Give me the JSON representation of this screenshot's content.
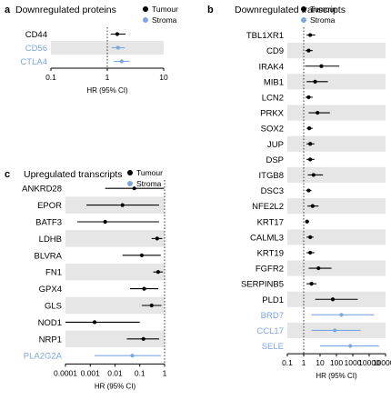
{
  "colors": {
    "tumour": "#000000",
    "stroma": "#7ea6e0",
    "band": "#e6e6e6"
  },
  "chart_data": [
    {
      "panel": "a",
      "type": "scatter",
      "title": "Downregulated proteins",
      "xlabel": "HR (95% CI)",
      "xscale": "log",
      "xlim": [
        0.1,
        10
      ],
      "xticks": [
        0.1,
        1,
        10
      ],
      "xticklabels": [
        "0.1",
        "1",
        "10"
      ],
      "reference_line": 1,
      "legend": [
        "Tumour",
        "Stroma"
      ],
      "legend_position": "top-right",
      "rows": [
        {
          "label": "CD44",
          "group": "Tumour",
          "hr": 1.5,
          "lo": 1.15,
          "hi": 2.1
        },
        {
          "label": "CD56",
          "group": "Stroma",
          "hr": 1.55,
          "lo": 1.2,
          "hi": 2.05
        },
        {
          "label": "CTLA4",
          "group": "Stroma",
          "hr": 1.8,
          "lo": 1.3,
          "hi": 2.5
        }
      ]
    },
    {
      "panel": "b",
      "type": "scatter",
      "title": "Downregulated transcripts",
      "xlabel": "HR (95% CI)",
      "xscale": "log",
      "xlim": [
        0.1,
        100000
      ],
      "xticks": [
        0.1,
        1,
        10,
        100,
        1000,
        10000,
        100000
      ],
      "xticklabels": [
        "0.1",
        "1",
        "10",
        "100",
        "1000",
        "10000",
        "100000"
      ],
      "reference_line": 1,
      "legend": [
        "Tumour",
        "Stroma"
      ],
      "legend_position": "top-right",
      "rows": [
        {
          "label": "TBL1XR1",
          "group": "Tumour",
          "hr": 2.5,
          "lo": 1.5,
          "hi": 5
        },
        {
          "label": "CD9",
          "group": "Tumour",
          "hr": 2,
          "lo": 1.3,
          "hi": 3.5
        },
        {
          "label": "IRAK4",
          "group": "Tumour",
          "hr": 12,
          "lo": 1.2,
          "hi": 150
        },
        {
          "label": "MIB1",
          "group": "Tumour",
          "hr": 5,
          "lo": 1.5,
          "hi": 30
        },
        {
          "label": "LCN2",
          "group": "Tumour",
          "hr": 2,
          "lo": 1.3,
          "hi": 3.5
        },
        {
          "label": "PRKX",
          "group": "Tumour",
          "hr": 7,
          "lo": 2,
          "hi": 40
        },
        {
          "label": "SOX2",
          "group": "Tumour",
          "hr": 2.2,
          "lo": 1.5,
          "hi": 3.5
        },
        {
          "label": "JUP",
          "group": "Tumour",
          "hr": 2.5,
          "lo": 1.5,
          "hi": 4.5
        },
        {
          "label": "DSP",
          "group": "Tumour",
          "hr": 2.5,
          "lo": 1.5,
          "hi": 4.5
        },
        {
          "label": "ITGB8",
          "group": "Tumour",
          "hr": 4,
          "lo": 1.8,
          "hi": 15
        },
        {
          "label": "DSC3",
          "group": "Tumour",
          "hr": 2,
          "lo": 1.4,
          "hi": 3
        },
        {
          "label": "NFE2L2",
          "group": "Tumour",
          "hr": 3.5,
          "lo": 1.7,
          "hi": 8
        },
        {
          "label": "KRT17",
          "group": "Tumour",
          "hr": 1.6,
          "lo": 1.3,
          "hi": 2.1
        },
        {
          "label": "CALML3",
          "group": "Tumour",
          "hr": 2.5,
          "lo": 1.5,
          "hi": 4
        },
        {
          "label": "KRT19",
          "group": "Tumour",
          "hr": 2.5,
          "lo": 1.5,
          "hi": 4.5
        },
        {
          "label": "FGFR2",
          "group": "Tumour",
          "hr": 8,
          "lo": 2,
          "hi": 50
        },
        {
          "label": "SERPINB5",
          "group": "Tumour",
          "hr": 3,
          "lo": 1.5,
          "hi": 6
        },
        {
          "label": "PLD1",
          "group": "Tumour",
          "hr": 60,
          "lo": 5,
          "hi": 2000
        },
        {
          "label": "BRD7",
          "group": "Stroma",
          "hr": 200,
          "lo": 3,
          "hi": 20000
        },
        {
          "label": "CCL17",
          "group": "Stroma",
          "hr": 80,
          "lo": 3,
          "hi": 3000
        },
        {
          "label": "SELE",
          "group": "Stroma",
          "hr": 700,
          "lo": 10,
          "hi": 40000
        }
      ]
    },
    {
      "panel": "c",
      "type": "scatter",
      "title": "Upregulated transcripts",
      "xlabel": "HR (95% CI)",
      "xscale": "log",
      "xlim": [
        0.0001,
        1
      ],
      "xticks": [
        0.0001,
        0.001,
        0.01,
        0.1,
        1
      ],
      "xticklabels": [
        "0.0001",
        "0.001",
        "0.01",
        "0.1",
        "1"
      ],
      "reference_line": 1,
      "legend": [
        "Tumour",
        "Stroma"
      ],
      "legend_position": "top-right",
      "rows": [
        {
          "label": "ANKRD28",
          "group": "Tumour",
          "hr": 0.06,
          "lo": 0.004,
          "hi": 0.95
        },
        {
          "label": "EPOR",
          "group": "Tumour",
          "hr": 0.02,
          "lo": 0.0007,
          "hi": 0.6
        },
        {
          "label": "BATF3",
          "group": "Tumour",
          "hr": 0.004,
          "lo": 0.0003,
          "hi": 0.6
        },
        {
          "label": "LDHB",
          "group": "Tumour",
          "hr": 0.5,
          "lo": 0.3,
          "hi": 0.8
        },
        {
          "label": "BLVRA",
          "group": "Tumour",
          "hr": 0.12,
          "lo": 0.02,
          "hi": 0.7
        },
        {
          "label": "FN1",
          "group": "Tumour",
          "hr": 0.55,
          "lo": 0.35,
          "hi": 0.85
        },
        {
          "label": "GPX4",
          "group": "Tumour",
          "hr": 0.15,
          "lo": 0.04,
          "hi": 0.55
        },
        {
          "label": "GLS",
          "group": "Tumour",
          "hr": 0.3,
          "lo": 0.12,
          "hi": 0.75
        },
        {
          "label": "NOD1",
          "group": "Tumour",
          "hr": 0.0015,
          "lo": 0.0001,
          "hi": 0.1
        },
        {
          "label": "NRP1",
          "group": "Tumour",
          "hr": 0.14,
          "lo": 0.03,
          "hi": 0.6
        },
        {
          "label": "PLA2G2A",
          "group": "Stroma",
          "hr": 0.05,
          "lo": 0.0015,
          "hi": 0.7
        }
      ]
    }
  ]
}
